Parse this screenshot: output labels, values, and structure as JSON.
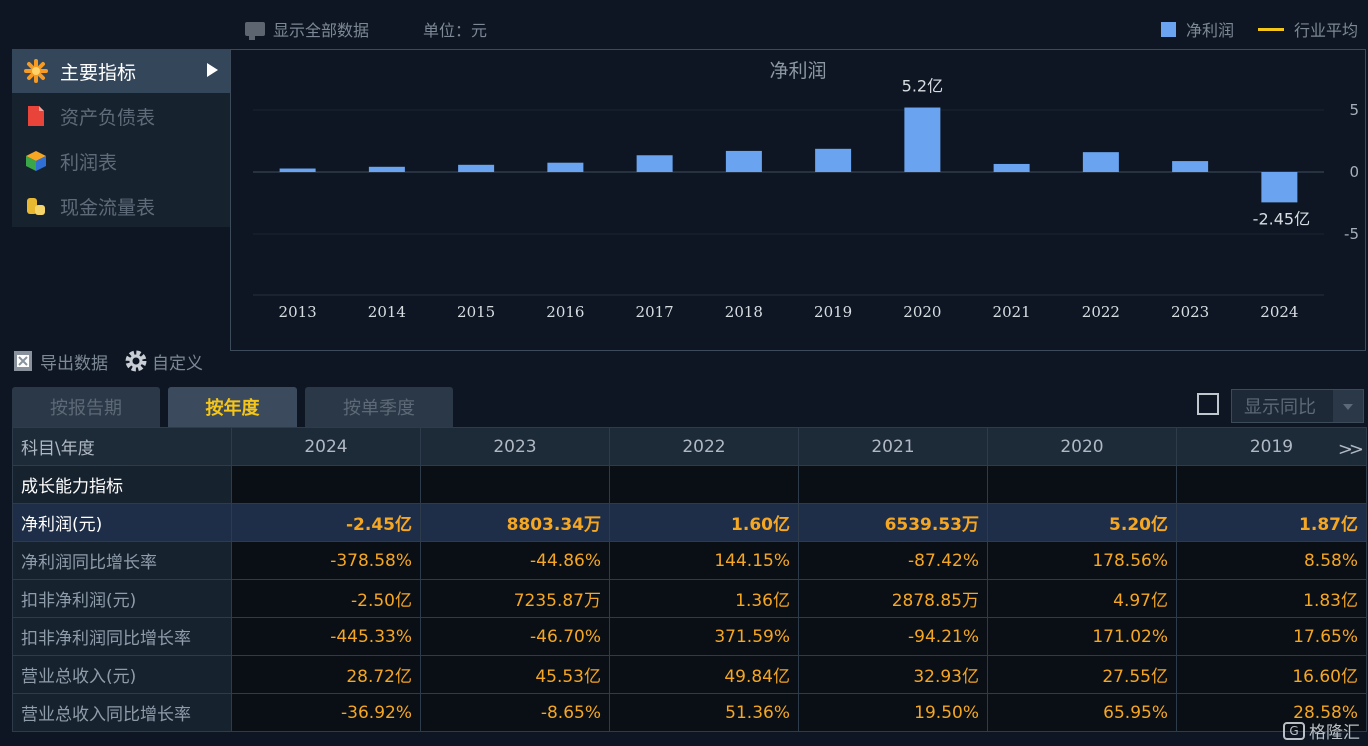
{
  "toolbar": {
    "show_all_label": "显示全部数据",
    "unit_label": "单位：元",
    "legend": [
      {
        "label": "净利润",
        "color": "#6aa4f0"
      },
      {
        "label": "行业平均",
        "color": "#f5c518"
      }
    ]
  },
  "menu": {
    "items": [
      {
        "label": "主要指标",
        "icon": "asterisk-icon",
        "active": true
      },
      {
        "label": "资产负债表",
        "icon": "document-icon",
        "active": false
      },
      {
        "label": "利润表",
        "icon": "cube-icon",
        "active": false
      },
      {
        "label": "现金流量表",
        "icon": "coins-icon",
        "active": false
      }
    ]
  },
  "chart_data": {
    "type": "bar",
    "title": "净利润",
    "categories": [
      "2013",
      "2014",
      "2015",
      "2016",
      "2017",
      "2018",
      "2019",
      "2020",
      "2021",
      "2022",
      "2023",
      "2024"
    ],
    "series": [
      {
        "name": "净利润",
        "color": "#6aa4f0",
        "values": [
          0.28,
          0.42,
          0.58,
          0.75,
          1.35,
          1.7,
          1.87,
          5.2,
          0.65,
          1.6,
          0.88,
          -2.45
        ]
      }
    ],
    "value_labels": [
      {
        "index": 7,
        "text": "5.2亿"
      },
      {
        "index": 11,
        "text": "-2.45亿"
      }
    ],
    "yticks": [
      5,
      0,
      -5
    ],
    "ylim": [
      -10,
      5.5
    ],
    "xlabel": "",
    "ylabel": "",
    "grid": true
  },
  "tools": {
    "export_label": "导出数据",
    "custom_label": "自定义"
  },
  "tabs": [
    {
      "label": "按报告期",
      "active": false
    },
    {
      "label": "按年度",
      "active": true
    },
    {
      "label": "按单季度",
      "active": false
    }
  ],
  "yoy": {
    "select_label": "显示同比"
  },
  "table": {
    "corner_header": "科目\\年度",
    "years": [
      "2024",
      "2023",
      "2022",
      "2021",
      "2020",
      "2019"
    ],
    "rows": [
      {
        "label": "成长能力指标",
        "values": [
          "",
          "",
          "",
          "",
          "",
          ""
        ],
        "type": "section"
      },
      {
        "label": "净利润(元)",
        "values": [
          "-2.45亿",
          "8803.34万",
          "1.60亿",
          "6539.53万",
          "5.20亿",
          "1.87亿"
        ],
        "type": "hl"
      },
      {
        "label": "净利润同比增长率",
        "values": [
          "-378.58%",
          "-44.86%",
          "144.15%",
          "-87.42%",
          "178.56%",
          "8.58%"
        ],
        "type": "normal"
      },
      {
        "label": "扣非净利润(元)",
        "values": [
          "-2.50亿",
          "7235.87万",
          "1.36亿",
          "2878.85万",
          "4.97亿",
          "1.83亿"
        ],
        "type": "normal"
      },
      {
        "label": "扣非净利润同比增长率",
        "values": [
          "-445.33%",
          "-46.70%",
          "371.59%",
          "-94.21%",
          "171.02%",
          "17.65%"
        ],
        "type": "normal"
      },
      {
        "label": "营业总收入(元)",
        "values": [
          "28.72亿",
          "45.53亿",
          "49.84亿",
          "32.93亿",
          "27.55亿",
          "16.60亿"
        ],
        "type": "normal"
      },
      {
        "label": "营业总收入同比增长率",
        "values": [
          "-36.92%",
          "-8.65%",
          "51.36%",
          "19.50%",
          "65.95%",
          "28.58%"
        ],
        "type": "normal"
      }
    ]
  },
  "watermark": {
    "text": "格隆汇"
  }
}
